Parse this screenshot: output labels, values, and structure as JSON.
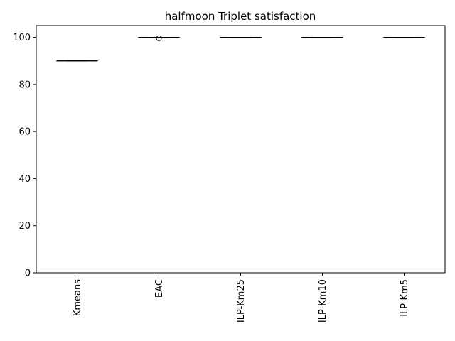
{
  "chart_data": {
    "type": "boxplot",
    "title": "halfmoon Triplet satisfaction",
    "xlabel": "",
    "ylabel": "",
    "ylim": [
      0,
      105
    ],
    "yticks": [
      0,
      20,
      40,
      60,
      80,
      100
    ],
    "grid": false,
    "legend": "none",
    "categories": [
      "Kmeans",
      "EAC",
      "ILP-Km25",
      "ILP-Km10",
      "ILP-Km5"
    ],
    "boxes": [
      {
        "label": "Kmeans",
        "min": 90,
        "q1": 90,
        "median": 90,
        "q3": 90,
        "max": 90,
        "outliers": []
      },
      {
        "label": "EAC",
        "min": 100,
        "q1": 100,
        "median": 100,
        "q3": 100,
        "max": 100,
        "outliers": [
          99.6
        ]
      },
      {
        "label": "ILP-Km25",
        "min": 100,
        "q1": 100,
        "median": 100,
        "q3": 100,
        "max": 100,
        "outliers": []
      },
      {
        "label": "ILP-Km10",
        "min": 100,
        "q1": 100,
        "median": 100,
        "q3": 100,
        "max": 100,
        "outliers": []
      },
      {
        "label": "ILP-Km5",
        "min": 100,
        "q1": 100,
        "median": 100,
        "q3": 100,
        "max": 100,
        "outliers": []
      }
    ],
    "colors": {
      "box": "#000000",
      "median": "#000000",
      "outlier": "#000000"
    }
  }
}
